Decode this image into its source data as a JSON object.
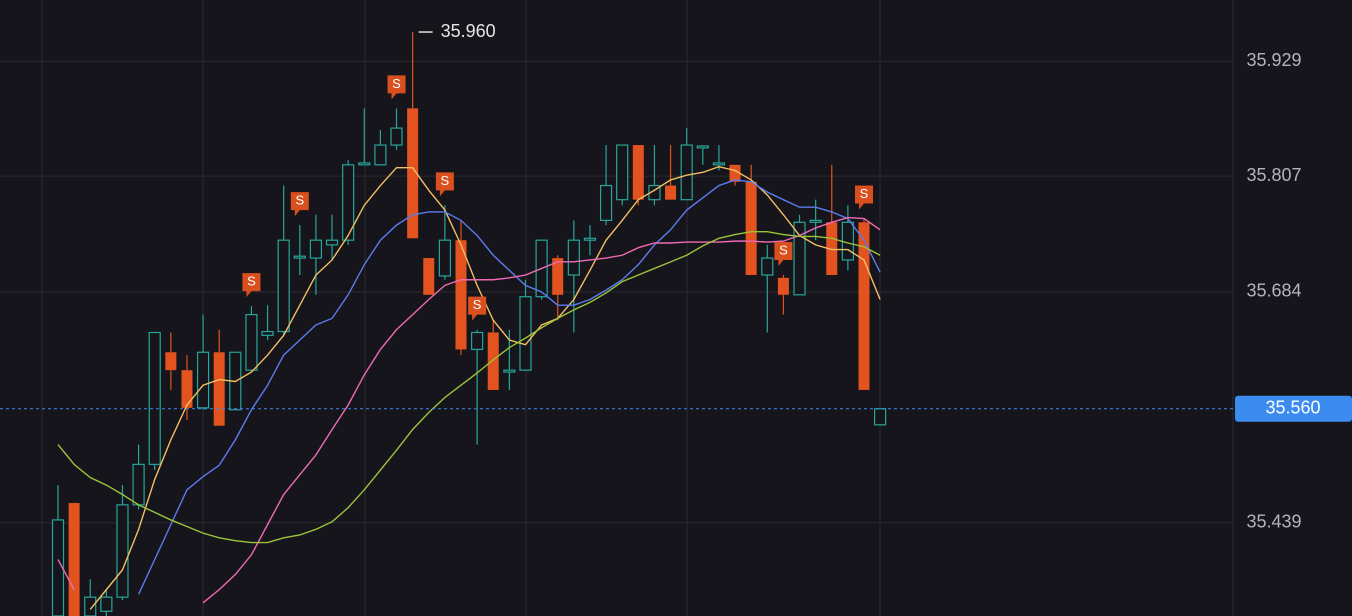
{
  "chart_data": {
    "type": "candlestick",
    "ylim": [
      35.34,
      35.994
    ],
    "yticks": [
      35.929,
      35.807,
      35.684,
      35.439
    ],
    "grid": true,
    "up_color": "#26a69a",
    "down_color": "#e2531f",
    "open": [
      35.34,
      35.46,
      35.34,
      35.345,
      35.36,
      35.458,
      35.501,
      35.62,
      35.601,
      35.561,
      35.62,
      35.559,
      35.601,
      35.638,
      35.642,
      35.72,
      35.72,
      35.734,
      35.739,
      35.819,
      35.819,
      35.84,
      35.879,
      35.72,
      35.701,
      35.739,
      35.623,
      35.641,
      35.599,
      35.601,
      35.679,
      35.72,
      35.702,
      35.739,
      35.76,
      35.782,
      35.84,
      35.782,
      35.797,
      35.782,
      35.837,
      35.819,
      35.819,
      35.801,
      35.702,
      35.699,
      35.681,
      35.758,
      35.758,
      35.718,
      35.758,
      35.543
    ],
    "high": [
      35.479,
      35.46,
      35.379,
      35.368,
      35.479,
      35.522,
      35.641,
      35.641,
      35.617,
      35.66,
      35.644,
      35.62,
      35.669,
      35.67,
      35.797,
      35.755,
      35.766,
      35.766,
      35.824,
      35.879,
      35.856,
      35.879,
      35.96,
      35.72,
      35.776,
      35.76,
      35.644,
      35.654,
      35.644,
      35.697,
      35.739,
      35.723,
      35.76,
      35.755,
      35.84,
      35.84,
      35.84,
      35.84,
      35.84,
      35.858,
      35.84,
      35.84,
      35.819,
      35.819,
      35.734,
      35.702,
      35.766,
      35.782,
      35.819,
      35.776,
      35.762,
      35.559
    ],
    "low": [
      35.34,
      35.34,
      35.34,
      35.34,
      35.357,
      35.453,
      35.495,
      35.58,
      35.548,
      35.559,
      35.542,
      35.559,
      35.599,
      35.633,
      35.638,
      35.702,
      35.681,
      35.718,
      35.734,
      35.819,
      35.819,
      35.835,
      35.741,
      35.681,
      35.697,
      35.617,
      35.522,
      35.58,
      35.58,
      35.601,
      35.676,
      35.654,
      35.641,
      35.723,
      35.755,
      35.776,
      35.776,
      35.776,
      35.782,
      35.782,
      35.819,
      35.813,
      35.797,
      35.702,
      35.641,
      35.66,
      35.681,
      35.739,
      35.702,
      35.707,
      35.58,
      35.543
    ],
    "close": [
      35.442,
      35.34,
      35.36,
      35.36,
      35.458,
      35.501,
      35.641,
      35.601,
      35.561,
      35.62,
      35.542,
      35.62,
      35.66,
      35.642,
      35.739,
      35.722,
      35.739,
      35.739,
      35.819,
      35.821,
      35.84,
      35.858,
      35.741,
      35.681,
      35.739,
      35.623,
      35.641,
      35.58,
      35.601,
      35.679,
      35.739,
      35.681,
      35.739,
      35.741,
      35.797,
      35.84,
      35.782,
      35.797,
      35.782,
      35.84,
      35.839,
      35.821,
      35.801,
      35.702,
      35.72,
      35.681,
      35.758,
      35.76,
      35.702,
      35.758,
      35.58,
      35.56
    ],
    "series": [
      {
        "color": "#f4bf62",
        "values": [
          null,
          null,
          35.347,
          35.368,
          35.389,
          35.432,
          35.485,
          35.527,
          35.564,
          35.585,
          35.591,
          35.589,
          35.599,
          35.617,
          35.638,
          35.67,
          35.702,
          35.718,
          35.744,
          35.776,
          35.797,
          35.816,
          35.816,
          35.792,
          35.771,
          35.734,
          35.691,
          35.654,
          35.633,
          35.628,
          35.649,
          35.656,
          35.676,
          35.707,
          35.739,
          35.76,
          35.782,
          35.792,
          35.803,
          35.808,
          35.811,
          35.817,
          35.813,
          35.803,
          35.787,
          35.766,
          35.744,
          35.734,
          35.729,
          35.729,
          35.718,
          35.676
        ]
      },
      {
        "color": "#5b7cf0",
        "values": [
          null,
          null,
          null,
          null,
          null,
          35.363,
          35.4,
          35.437,
          35.474,
          35.488,
          35.5,
          35.527,
          35.559,
          35.585,
          35.617,
          35.633,
          35.649,
          35.656,
          35.681,
          35.713,
          35.739,
          35.755,
          35.766,
          35.769,
          35.769,
          35.76,
          35.744,
          35.723,
          35.707,
          35.691,
          35.684,
          35.67,
          35.67,
          35.676,
          35.686,
          35.697,
          35.713,
          35.734,
          35.75,
          35.771,
          35.784,
          35.797,
          35.803,
          35.801,
          35.79,
          35.782,
          35.774,
          35.774,
          35.769,
          35.762,
          35.739,
          35.705
        ]
      },
      {
        "color": "#ef6ab4",
        "values": [
          35.4,
          35.368,
          null,
          null,
          null,
          null,
          null,
          null,
          null,
          35.354,
          35.368,
          35.384,
          35.405,
          35.437,
          35.469,
          35.49,
          35.511,
          35.538,
          35.564,
          35.596,
          35.623,
          35.644,
          35.66,
          35.676,
          35.691,
          35.697,
          35.697,
          35.697,
          35.699,
          35.702,
          35.709,
          35.716,
          35.716,
          35.718,
          35.72,
          35.723,
          35.731,
          35.736,
          35.736,
          35.737,
          35.737,
          35.737,
          35.738,
          35.738,
          35.737,
          35.738,
          35.744,
          35.752,
          35.758,
          35.763,
          35.762,
          35.75
        ]
      },
      {
        "color": "#9cc43a",
        "values": [
          35.522,
          35.501,
          35.487,
          35.479,
          35.469,
          35.458,
          35.45,
          35.442,
          35.435,
          35.428,
          35.423,
          35.42,
          35.418,
          35.418,
          35.423,
          35.426,
          35.432,
          35.44,
          35.455,
          35.474,
          35.495,
          35.516,
          35.538,
          35.556,
          35.572,
          35.585,
          35.598,
          35.612,
          35.625,
          35.635,
          35.646,
          35.656,
          35.665,
          35.673,
          35.683,
          35.695,
          35.702,
          35.709,
          35.716,
          35.723,
          35.733,
          35.741,
          35.745,
          35.748,
          35.748,
          35.745,
          35.743,
          35.743,
          35.741,
          35.736,
          35.732,
          35.723
        ]
      }
    ],
    "signals": {
      "label": "S",
      "color": "#d9501e",
      "indices": [
        12,
        15,
        21,
        24,
        26,
        45,
        50
      ]
    },
    "high_label": {
      "value": 35.96,
      "label": "35.960"
    },
    "last_price": {
      "value": 35.56,
      "label": "35.560",
      "color": "#3c8cf0"
    }
  }
}
